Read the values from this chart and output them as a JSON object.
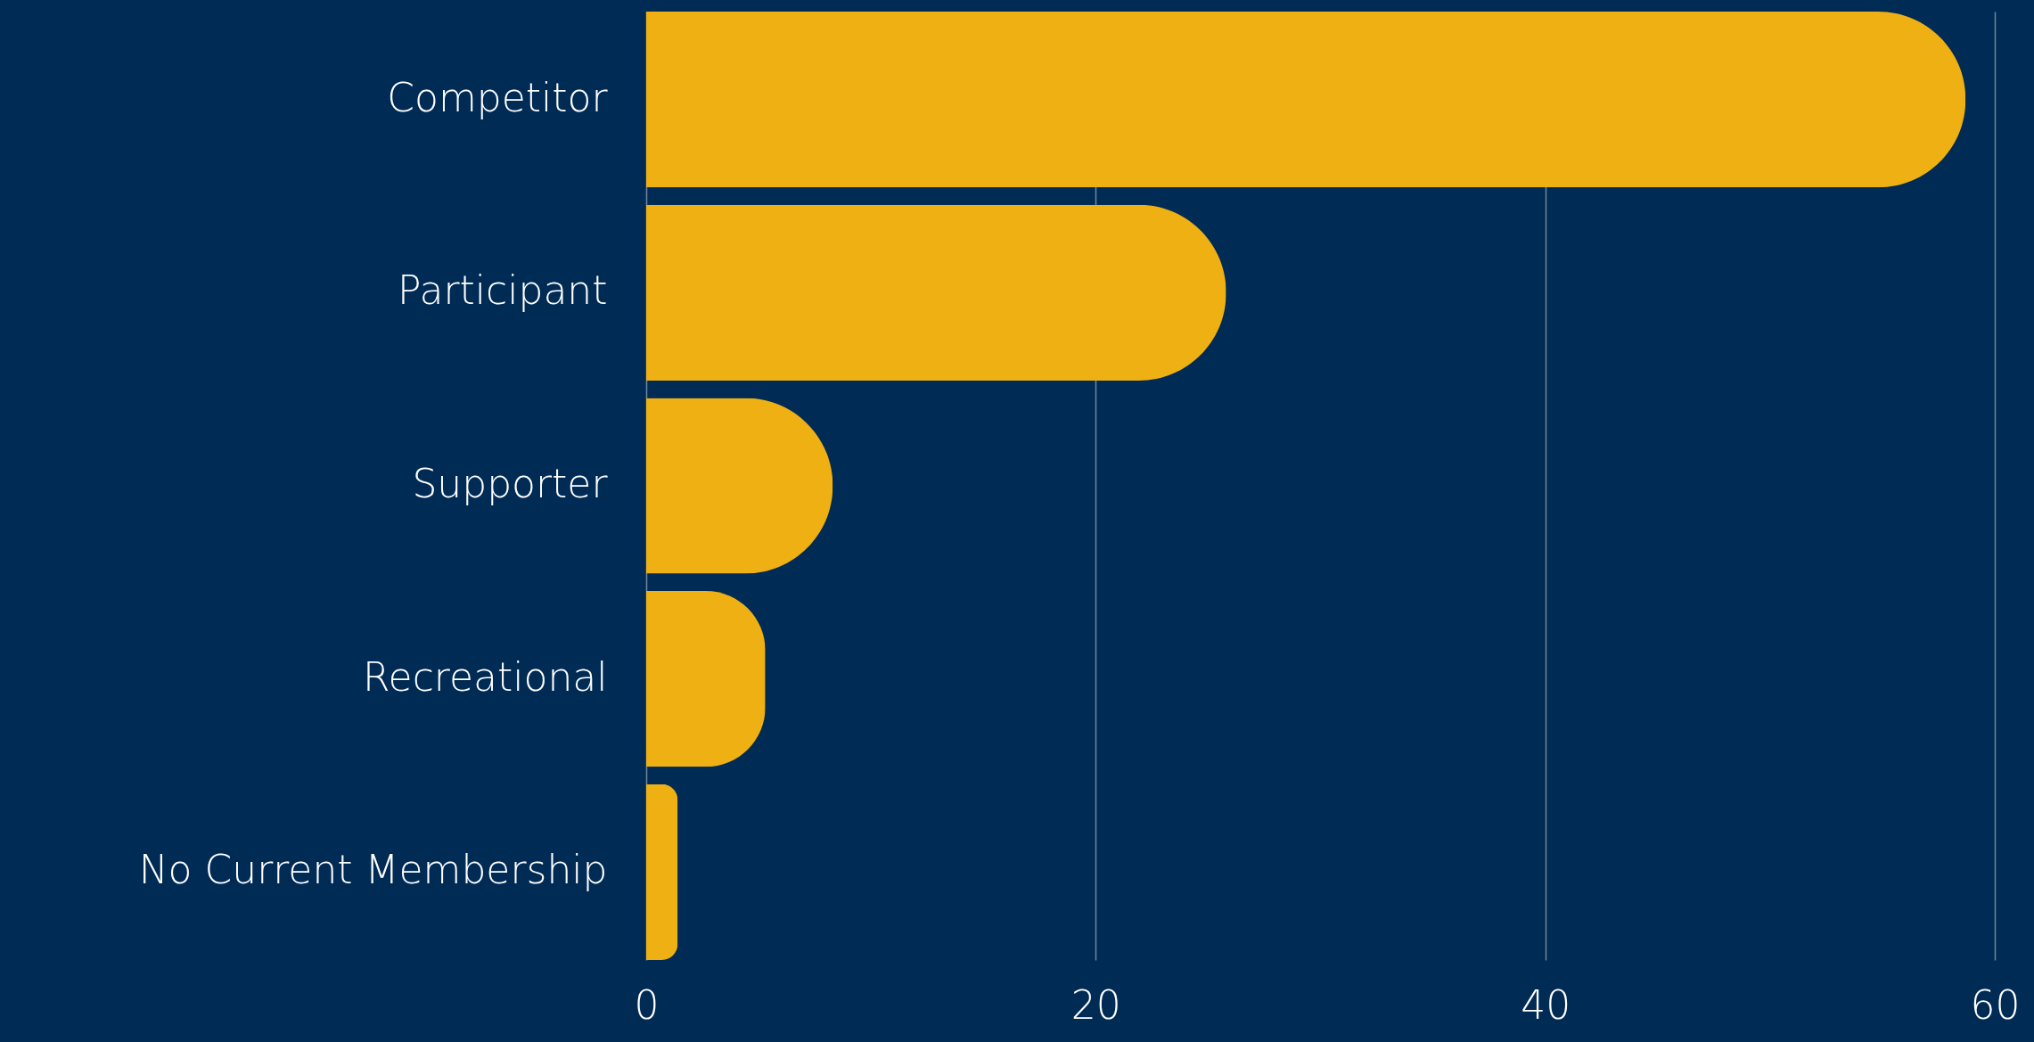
{
  "chart_data": {
    "type": "bar",
    "orientation": "horizontal",
    "categories": [
      "Competitor",
      "Participant",
      "Supporter",
      "Recreational",
      "No Current Membership"
    ],
    "values": [
      58.7,
      25.8,
      8.3,
      5.3,
      1.4
    ],
    "color": "#efb014",
    "xlim": [
      0,
      60
    ],
    "xticks": [
      0,
      20,
      40,
      60
    ],
    "grid": "x"
  }
}
